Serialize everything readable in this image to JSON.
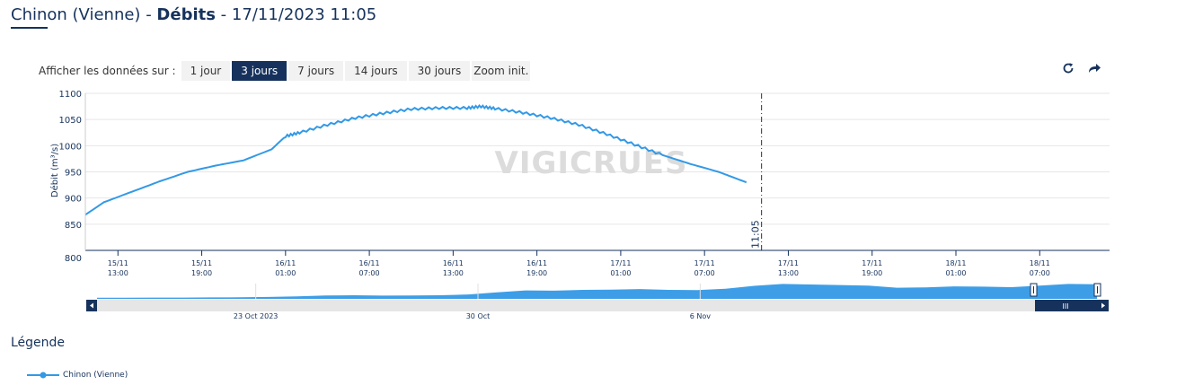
{
  "header": {
    "station": "Chinon (Vienne)",
    "separator1": " - ",
    "measure": "Débits",
    "separator2": " - ",
    "datetime": "17/11/2023 11:05"
  },
  "range_selector": {
    "label": "Afficher les données sur :",
    "buttons": [
      "1 jour",
      "3 jours",
      "7 jours",
      "14 jours",
      "30 jours",
      "Zoom init."
    ],
    "active": "3 jours"
  },
  "icons": {
    "refresh": "refresh-icon",
    "share": "share-icon"
  },
  "colors": {
    "series": "#3399e6",
    "navy": "#16325c"
  },
  "watermark": "VIGICRUES",
  "chart_data": {
    "type": "line",
    "ylabel": "Débit (m³/s)",
    "ylim": [
      800,
      1100
    ],
    "yticks": [
      800,
      850,
      900,
      950,
      1000,
      1050,
      1100
    ],
    "x_range": [
      "2023-11-15T10:40",
      "2023-11-18T12:00"
    ],
    "xticks": [
      {
        "t": "2023-11-15T13:00",
        "l1": "15/11",
        "l2": "13:00"
      },
      {
        "t": "2023-11-15T19:00",
        "l1": "15/11",
        "l2": "19:00"
      },
      {
        "t": "2023-11-16T01:00",
        "l1": "16/11",
        "l2": "01:00"
      },
      {
        "t": "2023-11-16T07:00",
        "l1": "16/11",
        "l2": "07:00"
      },
      {
        "t": "2023-11-16T13:00",
        "l1": "16/11",
        "l2": "13:00"
      },
      {
        "t": "2023-11-16T19:00",
        "l1": "16/11",
        "l2": "19:00"
      },
      {
        "t": "2023-11-17T01:00",
        "l1": "17/11",
        "l2": "01:00"
      },
      {
        "t": "2023-11-17T07:00",
        "l1": "17/11",
        "l2": "07:00"
      },
      {
        "t": "2023-11-17T13:00",
        "l1": "17/11",
        "l2": "13:00"
      },
      {
        "t": "2023-11-17T19:00",
        "l1": "17/11",
        "l2": "19:00"
      },
      {
        "t": "2023-11-18T01:00",
        "l1": "18/11",
        "l2": "01:00"
      },
      {
        "t": "2023-11-18T07:00",
        "l1": "18/11",
        "l2": "07:00"
      }
    ],
    "now_marker": {
      "t": "2023-11-17T11:05",
      "label": "11:05"
    },
    "series": [
      {
        "name": "Chinon (Vienne)",
        "x": [
          "2023-11-15T10:40",
          "2023-11-15T12:00",
          "2023-11-15T14:00",
          "2023-11-15T16:00",
          "2023-11-15T18:00",
          "2023-11-15T20:00",
          "2023-11-15T22:00",
          "2023-11-16T00:00",
          "2023-11-16T01:00",
          "2023-11-16T02:00",
          "2023-11-16T04:00",
          "2023-11-16T06:00",
          "2023-11-16T08:00",
          "2023-11-16T10:00",
          "2023-11-16T12:00",
          "2023-11-16T14:00",
          "2023-11-16T15:00",
          "2023-11-16T16:00",
          "2023-11-16T18:00",
          "2023-11-16T20:00",
          "2023-11-16T22:00",
          "2023-11-17T00:00",
          "2023-11-17T02:00",
          "2023-11-17T04:00",
          "2023-11-17T06:00",
          "2023-11-17T08:00",
          "2023-11-17T09:00",
          "2023-11-17T10:00"
        ],
        "y": [
          868,
          892,
          912,
          932,
          950,
          962,
          972,
          993,
          1018,
          1025,
          1040,
          1053,
          1062,
          1070,
          1072,
          1072,
          1075,
          1071,
          1063,
          1053,
          1040,
          1022,
          1002,
          982,
          965,
          950,
          940,
          930
        ]
      }
    ],
    "navigator": {
      "labels": [
        {
          "t": "2023-10-23",
          "label": "23 Oct 2023"
        },
        {
          "t": "2023-10-30",
          "label": "30 Oct"
        },
        {
          "t": "2023-11-06",
          "label": "6 Nov"
        }
      ]
    },
    "legend": [
      {
        "name": "Chinon (Vienne)"
      }
    ]
  },
  "legend_title": "Légende"
}
